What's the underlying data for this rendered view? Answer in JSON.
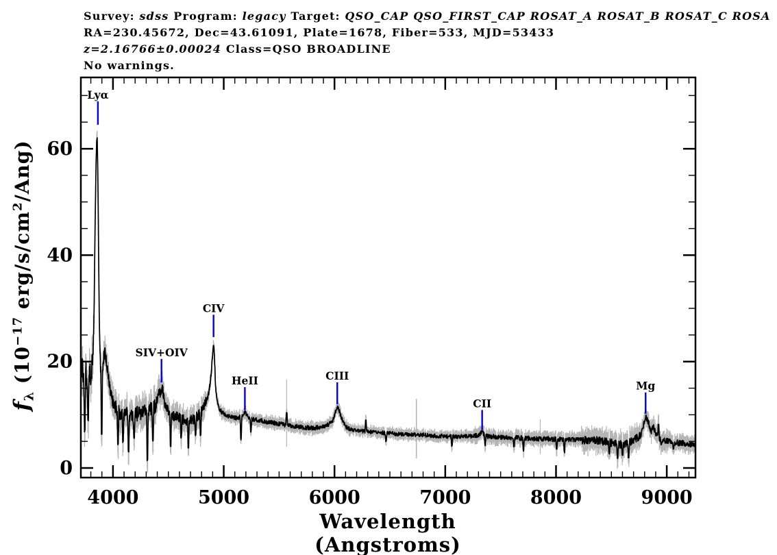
{
  "header": {
    "lines": [
      {
        "segments": [
          {
            "t": "Survey: "
          },
          {
            "t": "sdss",
            "i": true
          },
          {
            "t": " Program: "
          },
          {
            "t": "legacy",
            "i": true
          },
          {
            "t": " Target: "
          },
          {
            "t": "QSO_CAP QSO_FIRST_CAP ROSAT_A ROSAT_B ROSAT_C ROSA",
            "i": true
          }
        ]
      },
      {
        "segments": [
          {
            "t": "RA=230.45672, Dec=43.61091, Plate=1678, Fiber=533, MJD=53433"
          }
        ]
      },
      {
        "segments": [
          {
            "t": "z=2.16766±0.00024",
            "i": true
          },
          {
            "t": " Class=QSO BROADLINE"
          }
        ]
      },
      {
        "segments": [
          {
            "t": "No warnings."
          }
        ]
      }
    ]
  },
  "chart_data": {
    "type": "line",
    "title": "SDSS spectrum of QSO BROADLINE at z=2.16766",
    "xlabel": "Wavelength (Angstroms)",
    "ylabel_parts": [
      {
        "t": "f",
        "i": true
      },
      {
        "t": "λ",
        "sub": true
      },
      {
        "t": " (10"
      },
      {
        "t": "−17",
        "sup": true
      },
      {
        "t": " erg/s/cm"
      },
      {
        "t": "2",
        "sup": true
      },
      {
        "t": "/Ang)"
      }
    ],
    "xlim": [
      3710,
      9259
    ],
    "ylim": [
      -1.8,
      73.4
    ],
    "x_major_ticks": [
      4000,
      5000,
      6000,
      7000,
      8000,
      9000
    ],
    "x_minor_step": 100,
    "y_major_ticks": [
      0,
      20,
      40,
      60
    ],
    "y_minor_step": 5,
    "legend": "none",
    "grid": false,
    "colors": {
      "spectrum": "#000000",
      "error": "#b5b5b5",
      "line_marker": "#0000ee",
      "frame": "#000000"
    },
    "line_markers": [
      {
        "label": "Lyα",
        "slug": "lya",
        "lambda": 3864,
        "f_base": 64.5,
        "f_top": 68.9
      },
      {
        "label": "SIV+OIV",
        "slug": "siv-oiv",
        "lambda": 4438,
        "f_base": 16.1,
        "f_top": 20.5
      },
      {
        "label": "CIV",
        "slug": "civ",
        "lambda": 4908,
        "f_base": 24.6,
        "f_top": 28.8
      },
      {
        "label": "HeII",
        "slug": "heii",
        "lambda": 5191,
        "f_base": 10.9,
        "f_top": 15.2
      },
      {
        "label": "CIII",
        "slug": "ciii",
        "lambda": 6025,
        "f_base": 12.0,
        "f_top": 16.1
      },
      {
        "label": "CII",
        "slug": "cii",
        "lambda": 7333,
        "f_base": 7.2,
        "f_top": 10.9
      },
      {
        "label": "Mg",
        "slug": "mg",
        "lambda": 8809,
        "f_base": 10.2,
        "f_top": 14.2
      }
    ],
    "continuum_anchors": [
      [
        3714,
        17
      ],
      [
        3725,
        20
      ],
      [
        3740,
        15
      ],
      [
        3755,
        18
      ],
      [
        3770,
        16
      ],
      [
        3785,
        18
      ],
      [
        3800,
        17
      ],
      [
        3812,
        20
      ],
      [
        3822,
        24
      ],
      [
        3830,
        30
      ],
      [
        3838,
        45
      ],
      [
        3846,
        56
      ],
      [
        3852,
        61
      ],
      [
        3858,
        61.5
      ],
      [
        3864,
        55
      ],
      [
        3870,
        42
      ],
      [
        3876,
        28
      ],
      [
        3882,
        21.5
      ],
      [
        3890,
        18.5
      ],
      [
        3900,
        17.5
      ],
      [
        3910,
        19.5
      ],
      [
        3925,
        22.3
      ],
      [
        3940,
        20.5
      ],
      [
        3955,
        17
      ],
      [
        3970,
        15
      ],
      [
        3985,
        13.5
      ],
      [
        4000,
        12.5
      ],
      [
        4030,
        11
      ],
      [
        4060,
        10.3
      ],
      [
        4100,
        9.8
      ],
      [
        4140,
        10.2
      ],
      [
        4180,
        9.8
      ],
      [
        4220,
        10.2
      ],
      [
        4260,
        10.5
      ],
      [
        4300,
        10.8
      ],
      [
        4340,
        11
      ],
      [
        4380,
        11.6
      ],
      [
        4395,
        12.2
      ],
      [
        4415,
        13.5
      ],
      [
        4430,
        15.0
      ],
      [
        4440,
        15.2
      ],
      [
        4452,
        13.8
      ],
      [
        4468,
        12.3
      ],
      [
        4485,
        11.2
      ],
      [
        4505,
        10.6
      ],
      [
        4540,
        10
      ],
      [
        4580,
        9.5
      ],
      [
        4620,
        9.2
      ],
      [
        4660,
        9.0
      ],
      [
        4700,
        9.0
      ],
      [
        4740,
        9.3
      ],
      [
        4780,
        10
      ],
      [
        4820,
        11.3
      ],
      [
        4860,
        13.5
      ],
      [
        4875,
        15.5
      ],
      [
        4890,
        18.5
      ],
      [
        4900,
        21.5
      ],
      [
        4908,
        23.5
      ],
      [
        4916,
        21
      ],
      [
        4925,
        16
      ],
      [
        4935,
        13
      ],
      [
        4945,
        12
      ],
      [
        4960,
        11.2
      ],
      [
        4980,
        10.5
      ],
      [
        5020,
        9.9
      ],
      [
        5060,
        9.6
      ],
      [
        5100,
        9.4
      ],
      [
        5140,
        9.5
      ],
      [
        5160,
        9.7
      ],
      [
        5178,
        10.2
      ],
      [
        5191,
        10.5
      ],
      [
        5205,
        10.0
      ],
      [
        5225,
        9.5
      ],
      [
        5260,
        9.2
      ],
      [
        5320,
        9.0
      ],
      [
        5380,
        8.7
      ],
      [
        5440,
        8.5
      ],
      [
        5500,
        8.3
      ],
      [
        5560,
        8.1
      ],
      [
        5620,
        7.9
      ],
      [
        5680,
        7.7
      ],
      [
        5740,
        7.6
      ],
      [
        5800,
        7.5
      ],
      [
        5860,
        7.6
      ],
      [
        5920,
        7.9
      ],
      [
        5960,
        8.4
      ],
      [
        5985,
        9.0
      ],
      [
        6000,
        9.8
      ],
      [
        6012,
        10.8
      ],
      [
        6025,
        11.5
      ],
      [
        6040,
        11
      ],
      [
        6055,
        10
      ],
      [
        6070,
        9
      ],
      [
        6090,
        8.2
      ],
      [
        6110,
        7.6
      ],
      [
        6140,
        7.3
      ],
      [
        6200,
        7.0
      ],
      [
        6260,
        6.9
      ],
      [
        6320,
        6.8
      ],
      [
        6380,
        6.7
      ],
      [
        6440,
        6.6
      ],
      [
        6500,
        6.6
      ],
      [
        6560,
        6.4
      ],
      [
        6620,
        6.3
      ],
      [
        6680,
        6.3
      ],
      [
        6740,
        6.2
      ],
      [
        6800,
        6.2
      ],
      [
        6860,
        6.1
      ],
      [
        6920,
        6.0
      ],
      [
        6980,
        6.0
      ],
      [
        7040,
        5.9
      ],
      [
        7100,
        5.9
      ],
      [
        7160,
        5.9
      ],
      [
        7220,
        6.0
      ],
      [
        7260,
        6.1
      ],
      [
        7300,
        6.2
      ],
      [
        7320,
        6.5
      ],
      [
        7333,
        6.7
      ],
      [
        7350,
        6.3
      ],
      [
        7375,
        6.0
      ],
      [
        7440,
        5.9
      ],
      [
        7500,
        5.8
      ],
      [
        7560,
        5.7
      ],
      [
        7620,
        5.7
      ],
      [
        7680,
        5.6
      ],
      [
        7740,
        5.6
      ],
      [
        7800,
        5.5
      ],
      [
        7860,
        5.5
      ],
      [
        7920,
        5.5
      ],
      [
        7980,
        5.4
      ],
      [
        8040,
        5.4
      ],
      [
        8100,
        5.4
      ],
      [
        8160,
        5.3
      ],
      [
        8220,
        5.3
      ],
      [
        8280,
        5.2
      ],
      [
        8340,
        5.2
      ],
      [
        8400,
        5.1
      ],
      [
        8460,
        4.9
      ],
      [
        8520,
        4.6
      ],
      [
        8580,
        4.4
      ],
      [
        8640,
        4.6
      ],
      [
        8700,
        5.2
      ],
      [
        8760,
        6.0
      ],
      [
        8780,
        7.0
      ],
      [
        8795,
        8.8
      ],
      [
        8809,
        9.6
      ],
      [
        8820,
        9.2
      ],
      [
        8835,
        8.6
      ],
      [
        8850,
        7.4
      ],
      [
        8862,
        6.8
      ],
      [
        8875,
        7.8
      ],
      [
        8888,
        7.4
      ],
      [
        8900,
        6.6
      ],
      [
        8915,
        6.0
      ],
      [
        8935,
        5.6
      ],
      [
        8960,
        5.2
      ],
      [
        9010,
        5.0
      ],
      [
        9060,
        4.8
      ],
      [
        9110,
        4.7
      ],
      [
        9160,
        4.6
      ],
      [
        9210,
        4.5
      ],
      [
        9255,
        4.5
      ]
    ],
    "absorption_dips": [
      [
        3745,
        7
      ],
      [
        3775,
        9
      ],
      [
        3898,
        6.5
      ],
      [
        4045,
        4.5
      ],
      [
        4090,
        5
      ],
      [
        4140,
        3.2
      ],
      [
        4190,
        5.5
      ],
      [
        4310,
        1.6
      ],
      [
        4360,
        5
      ],
      [
        4520,
        4.2
      ],
      [
        4615,
        5.8
      ],
      [
        4680,
        3.9
      ],
      [
        4745,
        6.2
      ],
      [
        4790,
        6
      ],
      [
        5155,
        5.5
      ],
      [
        5245,
        7
      ],
      [
        6465,
        5
      ],
      [
        7060,
        4.3
      ],
      [
        7360,
        4.2
      ],
      [
        7620,
        3.9
      ],
      [
        7705,
        3.4
      ],
      [
        8005,
        3.5
      ],
      [
        8075,
        3.1
      ],
      [
        8480,
        2.8
      ],
      [
        8555,
        2.0
      ],
      [
        8600,
        2.4
      ],
      [
        8655,
        2.1
      ],
      [
        8950,
        4.5
      ],
      [
        9060,
        3.6
      ]
    ],
    "emission_spikes": [
      [
        5568,
        10.4
      ],
      [
        6283,
        9.0
      ],
      [
        8926,
        8.2
      ]
    ],
    "sky_residuals": [
      [
        5568,
        4.0,
        16.6
      ],
      [
        6740,
        1.8,
        13.0
      ],
      [
        7858,
        2.6,
        9.2
      ]
    ],
    "noise_regions": [
      [
        3710,
        3828,
        2.2,
        3.4
      ],
      [
        3828,
        3884,
        0.7,
        1.8
      ],
      [
        3884,
        3995,
        1.3,
        2.6
      ],
      [
        3995,
        4460,
        1.4,
        2.7
      ],
      [
        4460,
        4840,
        1.0,
        2.1
      ],
      [
        4840,
        4940,
        0.5,
        1.2
      ],
      [
        4940,
        6120,
        0.42,
        1.1
      ],
      [
        6120,
        7230,
        0.38,
        1.0
      ],
      [
        7230,
        8230,
        0.45,
        1.3
      ],
      [
        8230,
        8760,
        0.75,
        2.2
      ],
      [
        8760,
        9010,
        0.6,
        1.8
      ],
      [
        9010,
        9260,
        0.55,
        1.5
      ]
    ],
    "sample_step": 2.5,
    "noise_seed": 42
  }
}
